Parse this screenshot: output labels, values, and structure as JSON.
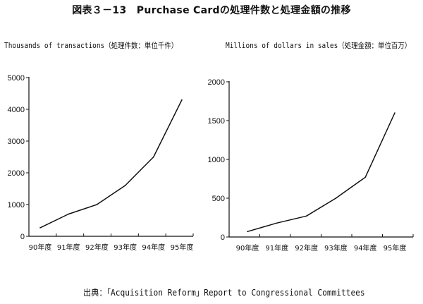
{
  "figure_title": "図表３－13　Purchase Cardの処理件数と処理金額の推移",
  "source_note": "出典：「Acquisition Reform」Report to Congressional Committees",
  "chart_data": [
    {
      "type": "line",
      "title": "Thousands of transactions（処理件数：単位千件）",
      "categories": [
        "90年度",
        "91年度",
        "92年度",
        "93年度",
        "94年度",
        "95年度"
      ],
      "ylim": [
        0,
        5000
      ],
      "yticks": [
        "0",
        "1000",
        "2000",
        "3000",
        "4000",
        "5000"
      ],
      "series": [
        {
          "values": [
            270,
            700,
            1000,
            1600,
            2500,
            4300
          ]
        }
      ],
      "grid": false,
      "line_color": "#111111"
    },
    {
      "type": "line",
      "title": "Millions of dollars in sales（処理金額：単位百万）",
      "categories": [
        "90年度",
        "91年度",
        "92年度",
        "93年度",
        "94年度",
        "95年度"
      ],
      "ylim": [
        0,
        2000
      ],
      "yticks": [
        "0",
        "500",
        "1000",
        "1500",
        "2000"
      ],
      "series": [
        {
          "values": [
            70,
            180,
            270,
            500,
            770,
            1600
          ]
        }
      ],
      "grid": false,
      "line_color": "#111111"
    }
  ]
}
